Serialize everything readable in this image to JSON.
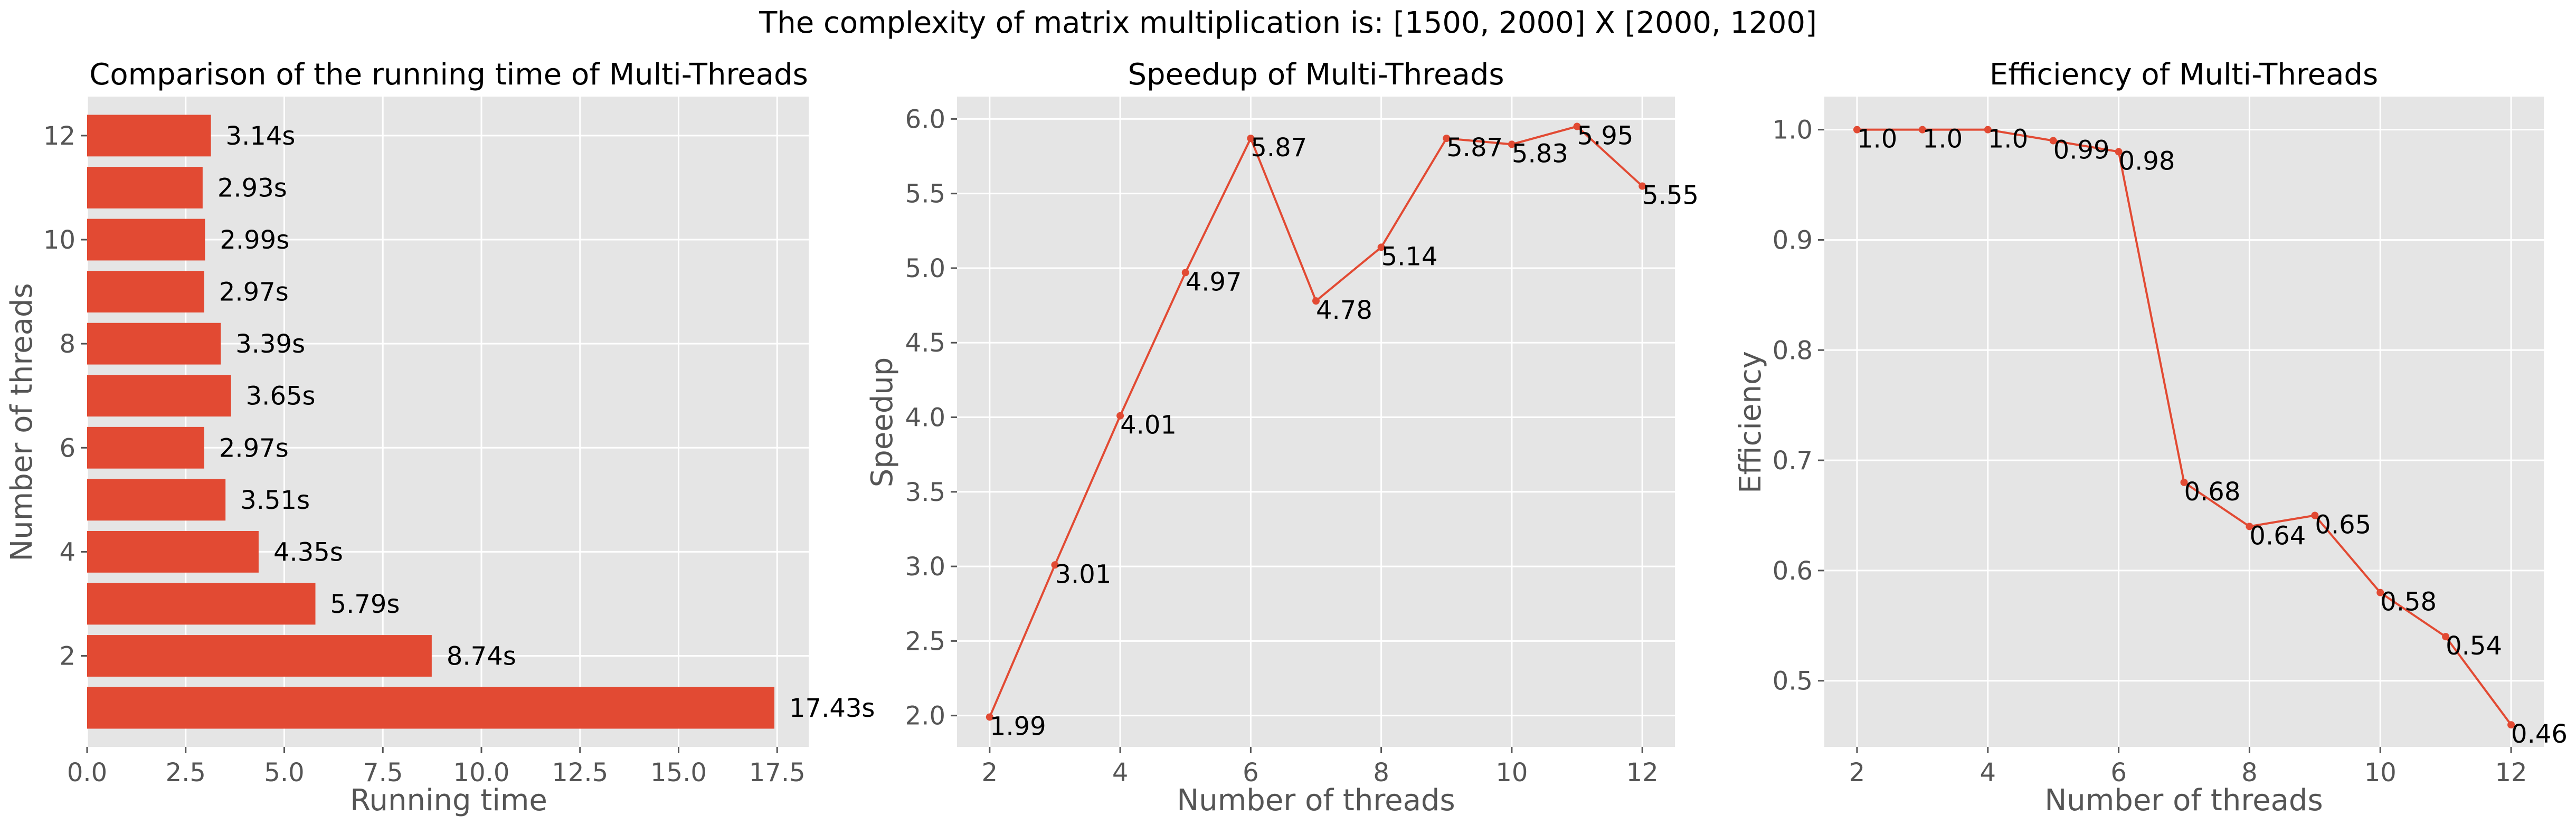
{
  "figure": {
    "suptitle": "The complexity of matrix multiplication is: [1500, 2000] X [2000, 1200]"
  },
  "colors": {
    "bar": "#E24A33",
    "line": "#E24A33",
    "axes_bg": "#E5E5E5",
    "grid": "#FFFFFF",
    "text": "#000000",
    "tick_text": "#555555"
  },
  "chart_data": [
    {
      "type": "bar",
      "orientation": "horizontal",
      "title": "Comparison of the running time of Multi-Threads",
      "xlabel": "Running time",
      "ylabel": "Number of threads",
      "categories": [
        1,
        2,
        3,
        4,
        5,
        6,
        7,
        8,
        9,
        10,
        11,
        12
      ],
      "values": [
        17.43,
        8.74,
        5.79,
        4.35,
        3.51,
        2.97,
        3.65,
        3.39,
        2.97,
        2.99,
        2.93,
        3.14
      ],
      "value_labels": [
        "17.43s",
        "8.74s",
        "5.79s",
        "4.35s",
        "3.51s",
        "2.97s",
        "3.65s",
        "3.39s",
        "2.97s",
        "2.99s",
        "2.93s",
        "3.14s"
      ],
      "xticks": [
        "0.0",
        "2.5",
        "5.0",
        "7.5",
        "10.0",
        "12.5",
        "15.0",
        "17.5"
      ],
      "yticks": [
        "2",
        "4",
        "6",
        "8",
        "10",
        "12"
      ],
      "xlim": [
        0,
        18.3
      ],
      "grid": true
    },
    {
      "type": "line",
      "title": "Speedup of Multi-Threads",
      "xlabel": "Number of threads",
      "ylabel": "Speedup",
      "x": [
        2,
        3,
        4,
        5,
        6,
        7,
        8,
        9,
        10,
        11,
        12
      ],
      "y": [
        1.99,
        3.01,
        4.01,
        4.97,
        5.87,
        4.78,
        5.14,
        5.87,
        5.83,
        5.95,
        5.55
      ],
      "point_labels": [
        "1.99",
        "3.01",
        "4.01",
        "4.97",
        "5.87",
        "4.78",
        "5.14",
        "5.87",
        "5.83",
        "5.95",
        "5.55"
      ],
      "xticks": [
        "2",
        "4",
        "6",
        "8",
        "10",
        "12"
      ],
      "yticks": [
        "2.0",
        "2.5",
        "3.0",
        "3.5",
        "4.0",
        "4.5",
        "5.0",
        "5.5",
        "6.0"
      ],
      "xlim": [
        1.5,
        12.5
      ],
      "ylim": [
        1.79,
        6.15
      ],
      "grid": true
    },
    {
      "type": "line",
      "title": "Efficiency of Multi-Threads",
      "xlabel": "Number of threads",
      "ylabel": "Efficiency",
      "x": [
        2,
        3,
        4,
        5,
        6,
        7,
        8,
        9,
        10,
        11,
        12
      ],
      "y": [
        1.0,
        1.0,
        1.0,
        0.99,
        0.98,
        0.68,
        0.64,
        0.65,
        0.58,
        0.54,
        0.46
      ],
      "point_labels": [
        "1.0",
        "1.0",
        "1.0",
        "0.99",
        "0.98",
        "0.68",
        "0.64",
        "0.65",
        "0.58",
        "0.54",
        "0.46"
      ],
      "xticks": [
        "2",
        "4",
        "6",
        "8",
        "10",
        "12"
      ],
      "yticks": [
        "0.5",
        "0.6",
        "0.7",
        "0.8",
        "0.9",
        "1.0"
      ],
      "xlim": [
        1.5,
        12.5
      ],
      "ylim": [
        0.44,
        1.03
      ],
      "grid": true
    }
  ]
}
